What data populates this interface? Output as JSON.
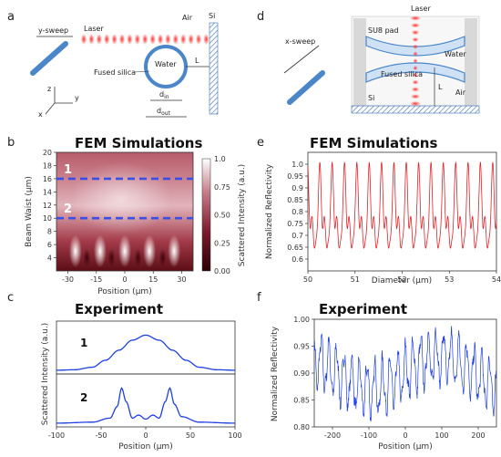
{
  "panel_letters": [
    "a",
    "b",
    "c",
    "d",
    "e",
    "f"
  ],
  "schematic_a": {
    "sweep": "y-sweep",
    "laser": "Laser",
    "air": "Air",
    "si": "Si",
    "water": "Water",
    "fused_silica": "Fused silica",
    "l": "L",
    "d_in": "d",
    "d_in_sub": "in",
    "d_out": "d",
    "d_out_sub": "out",
    "axis_z": "z",
    "axis_y": "y",
    "axis_x": "x"
  },
  "schematic_d": {
    "sweep": "x-sweep",
    "laser": "Laser",
    "su8": "SU8 pad",
    "water": "Water",
    "fused_silica": "Fused silica",
    "l": "L",
    "air": "Air",
    "si": "Si"
  },
  "colors": {
    "curve": "#1f3fe0",
    "reflect": "#e0232a",
    "dash": "#3a4fe6",
    "heat_low": "#2b0000",
    "heat_mid": "#b45566",
    "heat_high": "#ffffff"
  },
  "chart_data": [
    {
      "id": "b",
      "type": "heatmap",
      "title": "FEM Simulations",
      "xlabel": "Position (μm)",
      "ylabel": "Beam Waist (μm)",
      "xlim": [
        -36,
        36
      ],
      "ylim": [
        2,
        20
      ],
      "xticks": [
        "-30",
        "-15",
        "0",
        "15",
        "30"
      ],
      "yticks": [
        "4",
        "6",
        "8",
        "10",
        "12",
        "14",
        "16",
        "18",
        "20"
      ],
      "colorbar_label": "Scattered Intensity (a.u.)",
      "colorbar_ticks": [
        "0.00",
        "0.25",
        "0.50",
        "0.75",
        "1.0"
      ],
      "lines": [
        {
          "label": "1",
          "y": 16
        },
        {
          "label": "2",
          "y": 10
        }
      ]
    },
    {
      "id": "c",
      "type": "line",
      "title": "Experiment",
      "xlabel": "Position (μm)",
      "ylabel": "Scattered Intensity (a.u.)",
      "xlim": [
        -100,
        100
      ],
      "xticks": [
        "-100",
        "-50",
        "0",
        "50",
        "100"
      ],
      "series": [
        {
          "name": "1",
          "x": [
            -100,
            -80,
            -60,
            -45,
            -30,
            -15,
            0,
            15,
            30,
            45,
            60,
            80,
            100
          ],
          "y": [
            0.02,
            0.03,
            0.08,
            0.22,
            0.42,
            0.62,
            0.72,
            0.62,
            0.42,
            0.22,
            0.08,
            0.03,
            0.02
          ]
        },
        {
          "name": "2",
          "x": [
            -100,
            -60,
            -40,
            -32,
            -27,
            -22,
            -15,
            -8,
            0,
            8,
            15,
            22,
            27,
            32,
            40,
            60,
            100
          ],
          "y": [
            0.02,
            0.04,
            0.12,
            0.35,
            0.72,
            0.45,
            0.12,
            0.18,
            0.1,
            0.18,
            0.12,
            0.45,
            0.72,
            0.4,
            0.15,
            0.04,
            0.02
          ]
        }
      ]
    },
    {
      "id": "e",
      "type": "line",
      "title": "FEM Simulations",
      "xlabel": "Diameter (μm)",
      "ylabel": "Normalized Reflectivity",
      "xlim": [
        50,
        54
      ],
      "ylim": [
        0.55,
        1.05
      ],
      "xticks": [
        "50",
        "51",
        "52",
        "53",
        "54"
      ],
      "yticks": [
        "0.6",
        "0.65",
        "0.7",
        "0.75",
        "0.8",
        "0.85",
        "0.9",
        "0.95",
        "1.0"
      ],
      "series": [
        {
          "model": "periodic oscillation, period ~0.26 μm",
          "min": 0.57,
          "max": 1.0
        }
      ]
    },
    {
      "id": "f",
      "type": "line",
      "title": "Experiment",
      "xlabel": "Position (μm)",
      "ylabel": "Normalized Reflectivity",
      "xlim": [
        -250,
        250
      ],
      "ylim": [
        0.8,
        1.0
      ],
      "xticks": [
        "-200",
        "-100",
        "0",
        "100",
        "200"
      ],
      "yticks": [
        "0.80",
        "0.85",
        "0.90",
        "0.95",
        "1.00"
      ],
      "series": [
        {
          "model": "noisy oscillation",
          "min": 0.82,
          "max": 1.0
        }
      ]
    }
  ]
}
